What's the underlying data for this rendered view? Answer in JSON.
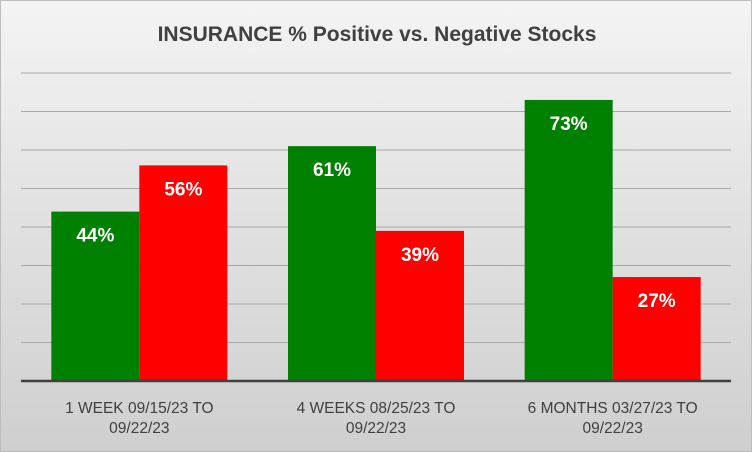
{
  "chart_data": {
    "type": "bar",
    "title": "INSURANCE % Positive vs. Negative Stocks",
    "categories": [
      [
        "1 WEEK 09/15/23 TO",
        "09/22/23"
      ],
      [
        "4 WEEKS 08/25/23 TO",
        "09/22/23"
      ],
      [
        "6 MONTHS 03/27/23 TO",
        "09/22/23"
      ]
    ],
    "series": [
      {
        "name": "Positive",
        "color": "#008000",
        "values": [
          44,
          61,
          73
        ],
        "labels": [
          "44%",
          "61%",
          "73%"
        ]
      },
      {
        "name": "Negative",
        "color": "#ff0000",
        "values": [
          56,
          39,
          27
        ],
        "labels": [
          "56%",
          "39%",
          "27%"
        ]
      }
    ],
    "ylim": [
      0,
      80
    ],
    "grid": true,
    "legend": "none",
    "xlabel": "",
    "ylabel": ""
  }
}
